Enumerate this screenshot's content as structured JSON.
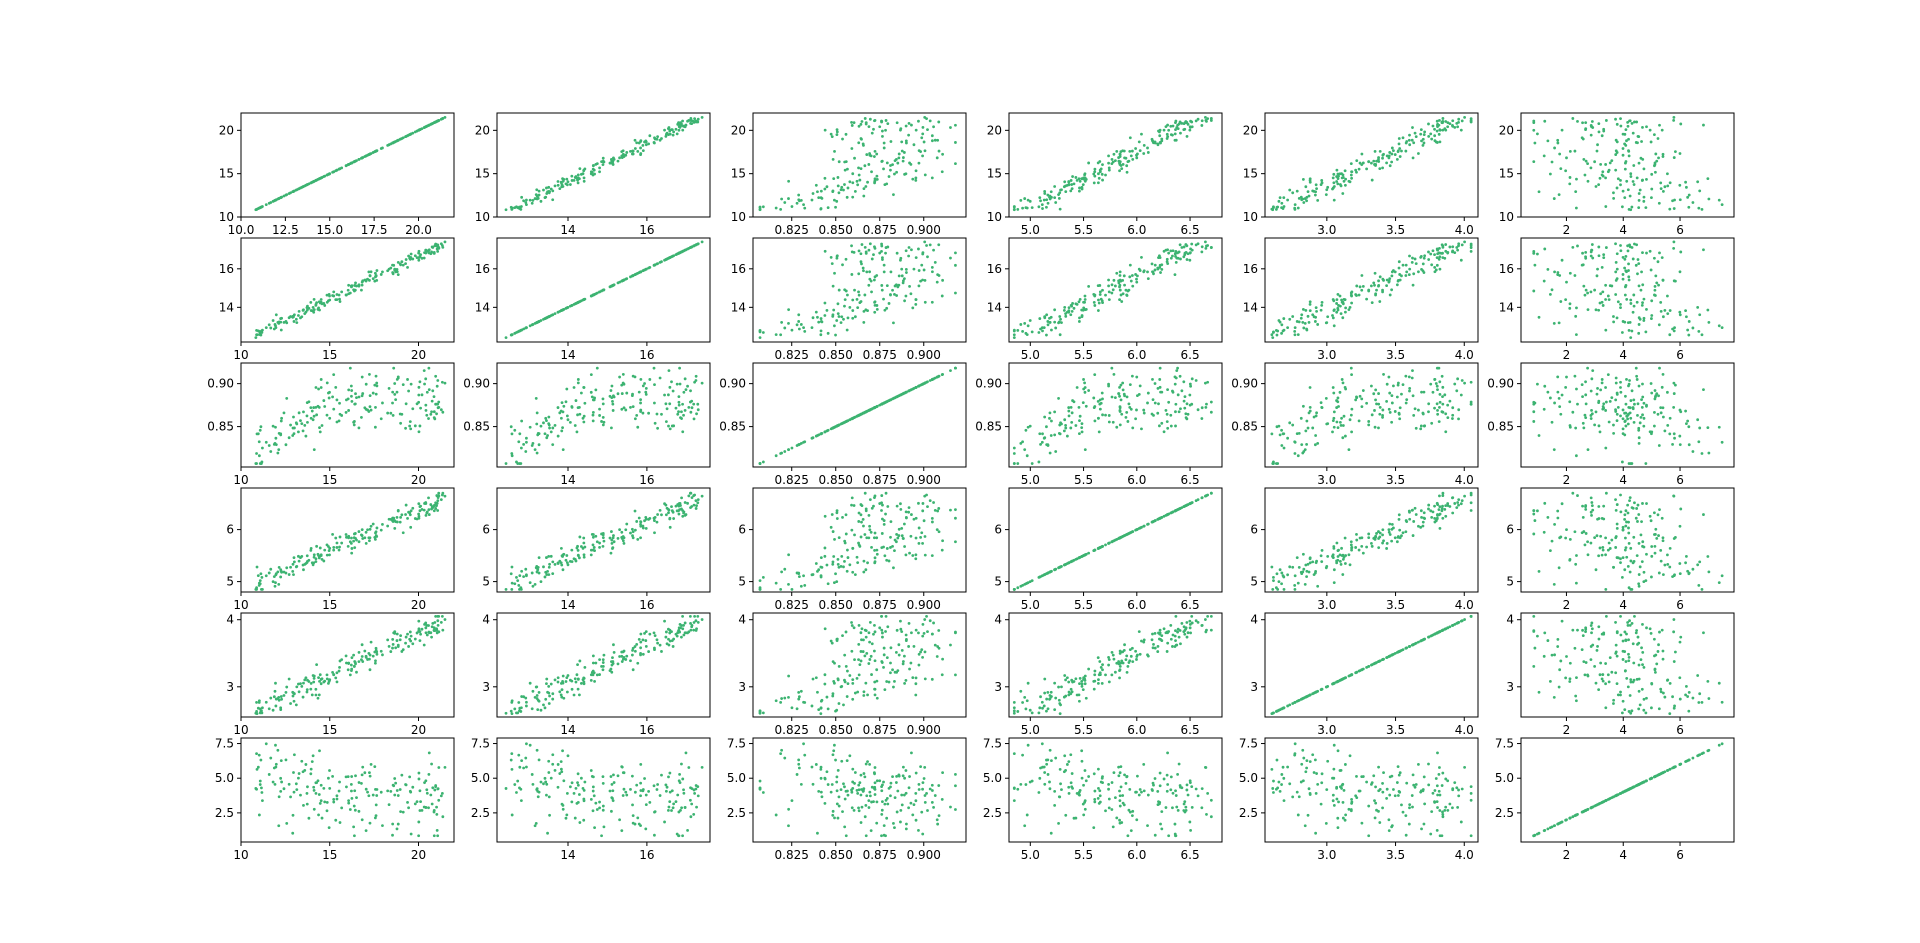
{
  "marker_color": "#3cb371",
  "chart_data": {
    "type": "scatter",
    "layout": "6x6 scatter matrix",
    "point_count": 200,
    "grid": false,
    "legend": "none",
    "variables": [
      {
        "ticks": [
          10,
          15,
          20
        ],
        "tick_labels": [
          "10",
          "15",
          "20"
        ],
        "bottom_ticks": [
          10.0,
          12.5,
          15.0,
          17.5,
          20.0
        ],
        "bottom_tick_labels": [
          "10.0",
          "12.5",
          "15.0",
          "17.5",
          "20.0"
        ],
        "range": [
          10,
          22
        ],
        "axis_lim": [
          10,
          22
        ]
      },
      {
        "ticks": [
          14,
          16
        ],
        "tick_labels": [
          "14",
          "16"
        ],
        "range": [
          12.5,
          17.4
        ],
        "axis_lim": [
          12.2,
          17.6
        ]
      },
      {
        "ticks": [
          0.825,
          0.85,
          0.875,
          0.9
        ],
        "tick_labels": [
          "0.825",
          "0.850",
          "0.875",
          "0.900"
        ],
        "left_ticks": [
          0.85,
          0.9
        ],
        "left_tick_labels": [
          "0.85",
          "0.90"
        ],
        "range": [
          0.81,
          0.917
        ],
        "axis_lim": [
          0.803,
          0.924
        ]
      },
      {
        "ticks": [
          5.0,
          5.5,
          6.0,
          6.5
        ],
        "tick_labels": [
          "5.0",
          "5.5",
          "6.0",
          "6.5"
        ],
        "left_ticks": [
          5,
          6
        ],
        "left_tick_labels": [
          "5",
          "6"
        ],
        "range": [
          4.9,
          6.67
        ],
        "axis_lim": [
          4.8,
          6.8
        ]
      },
      {
        "ticks": [
          3.0,
          3.5,
          4.0
        ],
        "tick_labels": [
          "3.0",
          "3.5",
          "4.0"
        ],
        "left_ticks": [
          3,
          4
        ],
        "left_tick_labels": [
          "3",
          "4"
        ],
        "range": [
          2.65,
          4.03
        ],
        "axis_lim": [
          2.55,
          4.1
        ]
      },
      {
        "ticks": [
          2,
          4,
          6
        ],
        "tick_labels": [
          "2",
          "4",
          "6"
        ],
        "left_ticks": [
          2.5,
          5.0,
          7.5
        ],
        "left_tick_labels": [
          "2.5",
          "5.0",
          "7.5"
        ],
        "range": [
          0.8,
          7.6
        ],
        "axis_lim": [
          0.4,
          7.9
        ]
      }
    ]
  }
}
